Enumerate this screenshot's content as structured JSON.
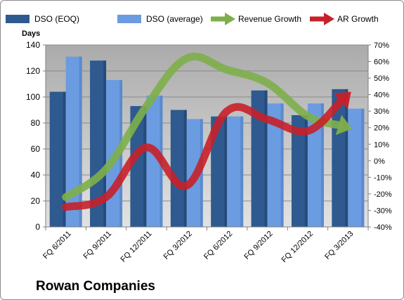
{
  "chart_data": {
    "type": "bar",
    "categories": [
      "FQ 6/2011",
      "FQ 9/2011",
      "FQ 12/2011",
      "FQ 3/2012",
      "FQ 6/2012",
      "FQ 9/2012",
      "FQ 12/2012",
      "FQ 3/2013"
    ],
    "series": [
      {
        "name": "DSO (EOQ)",
        "type": "bar",
        "axis": "left",
        "color": "#2e5a8f",
        "values": [
          104,
          128,
          93,
          90,
          85,
          105,
          86,
          106
        ]
      },
      {
        "name": "DSO (average)",
        "type": "bar",
        "axis": "left",
        "color": "#6b9be0",
        "values": [
          131,
          113,
          101,
          83,
          85,
          95,
          95,
          91
        ]
      },
      {
        "name": "Revenue Growth",
        "type": "line",
        "axis": "right",
        "color": "#7eaf4a",
        "unit": "percent",
        "values": [
          -22,
          -5,
          33,
          62,
          55,
          47,
          27,
          20
        ]
      },
      {
        "name": "AR Growth",
        "type": "line",
        "axis": "right",
        "color": "#c8202a",
        "unit": "percent",
        "values": [
          -28,
          -22,
          8,
          -15,
          30,
          25,
          18,
          40
        ]
      }
    ],
    "ylabel": "Days",
    "ylim": [
      0,
      140
    ],
    "yticks": [
      0,
      20,
      40,
      60,
      80,
      100,
      120,
      140
    ],
    "y2lim": [
      -40,
      70
    ],
    "y2ticks": [
      "-40%",
      "-30%",
      "-20%",
      "-10%",
      "0%",
      "10%",
      "20%",
      "30%",
      "40%",
      "50%",
      "60%",
      "70%"
    ],
    "grid": true,
    "legend": "top",
    "plot_background": "#c0c0c0"
  },
  "footer": {
    "company": "Rowan Companies"
  }
}
